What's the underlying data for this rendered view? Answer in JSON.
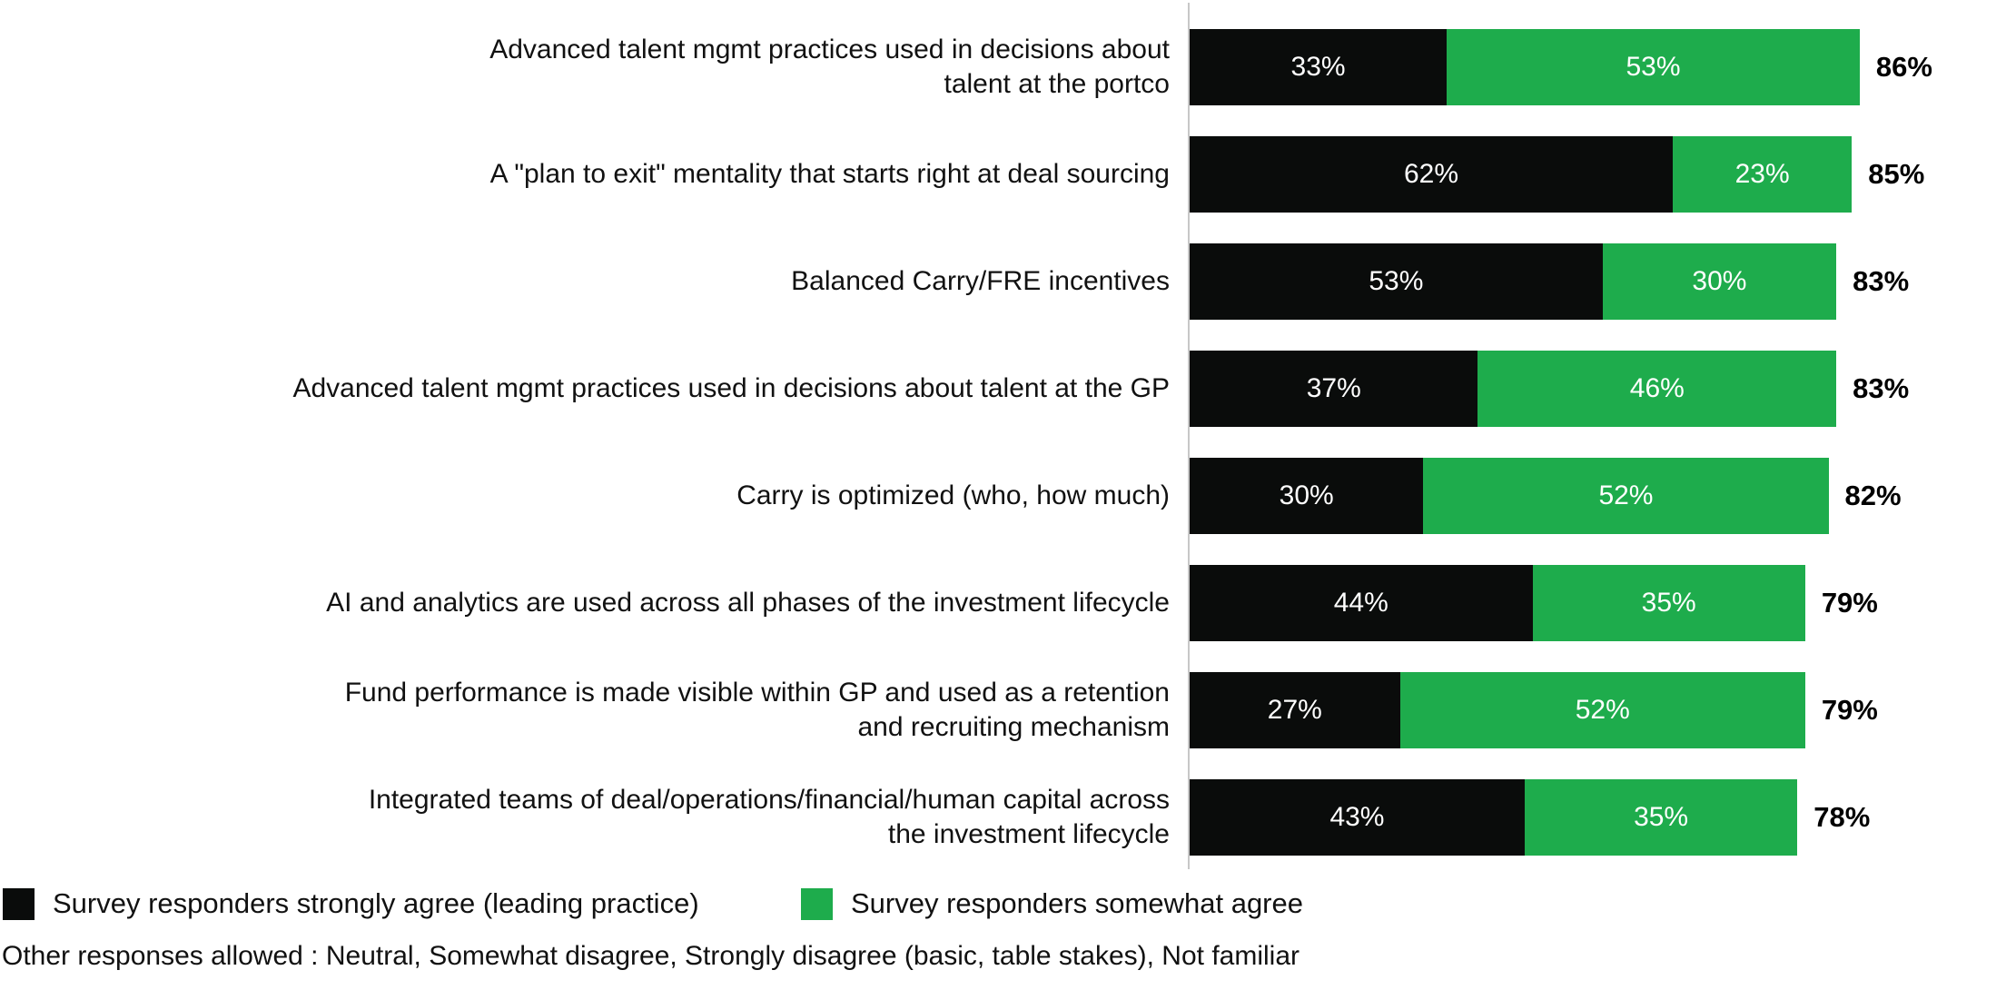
{
  "chart_data": {
    "type": "bar",
    "orientation": "horizontal",
    "stacked": true,
    "xlim": [
      0,
      100
    ],
    "grid": false,
    "legend_position": "bottom",
    "colors": {
      "strongly_agree": "#0a0c0b",
      "somewhat_agree": "#1eac4c"
    },
    "series_names": [
      "Survey responders strongly agree (leading practice)",
      "Survey responders somewhat agree"
    ],
    "rows": [
      {
        "label_lines": [
          "Advanced talent mgmt practices used in decisions about",
          "talent at the portco"
        ],
        "strongly": 33,
        "strongly_label": "33%",
        "somewhat": 53,
        "somewhat_label": "53%",
        "total": 86,
        "total_label": "86%"
      },
      {
        "label_lines": [
          "A \"plan to exit\" mentality that starts right at deal sourcing"
        ],
        "strongly": 62,
        "strongly_label": "62%",
        "somewhat": 23,
        "somewhat_label": "23%",
        "total": 85,
        "total_label": "85%"
      },
      {
        "label_lines": [
          "Balanced Carry/FRE incentives"
        ],
        "strongly": 53,
        "strongly_label": "53%",
        "somewhat": 30,
        "somewhat_label": "30%",
        "total": 83,
        "total_label": "83%"
      },
      {
        "label_lines": [
          "Advanced talent mgmt practices used in decisions about talent at the GP"
        ],
        "strongly": 37,
        "strongly_label": "37%",
        "somewhat": 46,
        "somewhat_label": "46%",
        "total": 83,
        "total_label": "83%"
      },
      {
        "label_lines": [
          "Carry is optimized (who, how much)"
        ],
        "strongly": 30,
        "strongly_label": "30%",
        "somewhat": 52,
        "somewhat_label": "52%",
        "total": 82,
        "total_label": "82%"
      },
      {
        "label_lines": [
          "AI and analytics are used across all phases of the investment lifecycle"
        ],
        "strongly": 44,
        "strongly_label": "44%",
        "somewhat": 35,
        "somewhat_label": "35%",
        "total": 79,
        "total_label": "79%"
      },
      {
        "label_lines": [
          "Fund performance is made visible within GP and used as a retention",
          "and recruiting mechanism"
        ],
        "strongly": 27,
        "strongly_label": "27%",
        "somewhat": 52,
        "somewhat_label": "52%",
        "total": 79,
        "total_label": "79%"
      },
      {
        "label_lines": [
          "Integrated teams of deal/operations/financial/human capital across",
          "the investment lifecycle"
        ],
        "strongly": 43,
        "strongly_label": "43%",
        "somewhat": 35,
        "somewhat_label": "35%",
        "total": 78,
        "total_label": "78%"
      }
    ]
  },
  "legend": {
    "items": [
      {
        "color": "#0a0c0b",
        "label": "Survey responders strongly agree (leading practice)"
      },
      {
        "color": "#1eac4c",
        "label": "Survey responders somewhat agree"
      }
    ]
  },
  "footnote": "Other responses allowed : Neutral, Somewhat disagree, Strongly disagree (basic, table stakes), Not familiar"
}
